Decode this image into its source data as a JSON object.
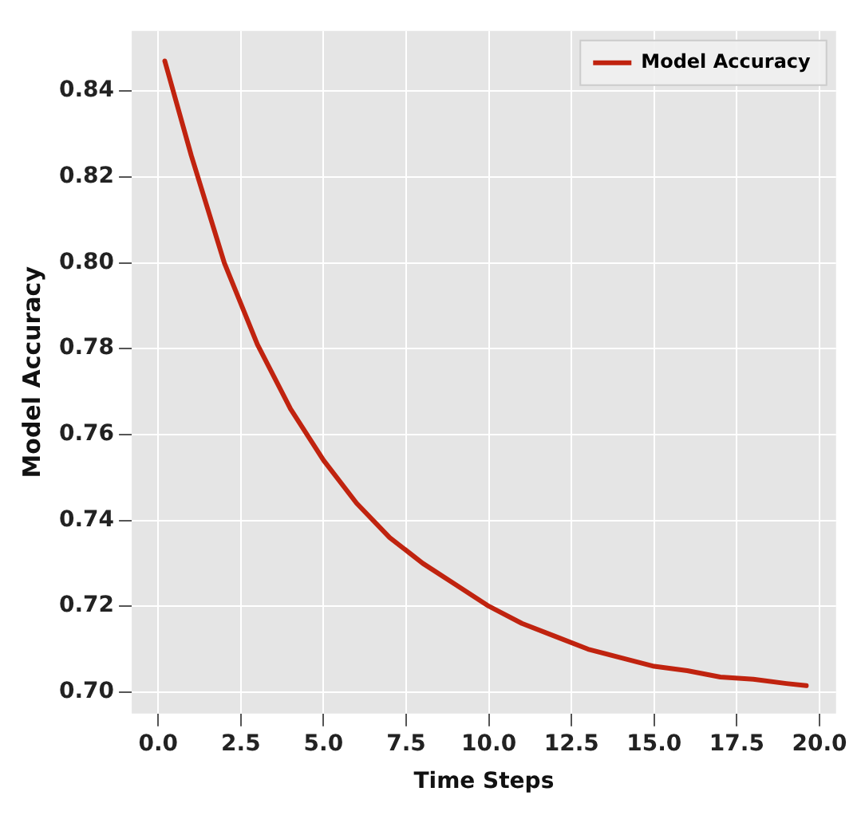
{
  "chart_data": {
    "type": "line",
    "xlabel": "Time Steps",
    "ylabel": "Model Accuracy",
    "x": [
      0.2,
      1,
      2,
      3,
      4,
      5,
      6,
      7,
      8,
      9,
      10,
      11,
      12,
      13,
      14,
      15,
      16,
      17,
      18,
      19,
      19.6
    ],
    "series": [
      {
        "name": "Model Accuracy",
        "color": "#c0230f",
        "values": [
          0.847,
          0.825,
          0.8,
          0.781,
          0.766,
          0.754,
          0.744,
          0.736,
          0.73,
          0.725,
          0.72,
          0.716,
          0.713,
          0.71,
          0.708,
          0.706,
          0.705,
          0.7035,
          0.703,
          0.702,
          0.7015
        ]
      }
    ],
    "xlim": [
      -0.8,
      20.5
    ],
    "ylim": [
      0.695,
      0.854
    ],
    "xticks": [
      {
        "value": 0,
        "label": "0.0"
      },
      {
        "value": 2.5,
        "label": "2.5"
      },
      {
        "value": 5,
        "label": "5.0"
      },
      {
        "value": 7.5,
        "label": "7.5"
      },
      {
        "value": 10,
        "label": "10.0"
      },
      {
        "value": 12.5,
        "label": "12.5"
      },
      {
        "value": 15,
        "label": "15.0"
      },
      {
        "value": 17.5,
        "label": "17.5"
      },
      {
        "value": 20,
        "label": "20.0"
      }
    ],
    "yticks": [
      {
        "value": 0.7,
        "label": "0.70"
      },
      {
        "value": 0.72,
        "label": "0.72"
      },
      {
        "value": 0.74,
        "label": "0.74"
      },
      {
        "value": 0.76,
        "label": "0.76"
      },
      {
        "value": 0.78,
        "label": "0.78"
      },
      {
        "value": 0.8,
        "label": "0.80"
      },
      {
        "value": 0.82,
        "label": "0.82"
      },
      {
        "value": 0.84,
        "label": "0.84"
      }
    ],
    "grid": true,
    "legend": "top right",
    "marker": "none",
    "line_style": "solid"
  }
}
